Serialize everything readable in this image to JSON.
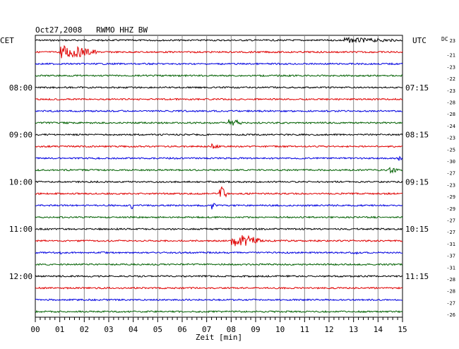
{
  "chart_data": {
    "type": "line",
    "title": "Oct27,2008   RWMO HHZ BW",
    "xlabel": "Zeit [min]",
    "left_axis_title": "CET",
    "right_axis_title": "UTC",
    "dc_label": "DC",
    "xlim": [
      0,
      15
    ],
    "x_ticks": [
      "00",
      "01",
      "02",
      "03",
      "04",
      "05",
      "06",
      "07",
      "08",
      "09",
      "10",
      "11",
      "12",
      "13",
      "14",
      "15"
    ],
    "trace_colors": [
      "#000000",
      "#e00000",
      "#0000e0",
      "#006000"
    ],
    "traces_per_hour": 4,
    "trace_count": 24,
    "cet_hour_labels": [
      {
        "trace": 4,
        "label": "08:00"
      },
      {
        "trace": 8,
        "label": "09:00"
      },
      {
        "trace": 12,
        "label": "10:00"
      },
      {
        "trace": 16,
        "label": "11:00"
      },
      {
        "trace": 20,
        "label": "12:00"
      }
    ],
    "utc_labels": [
      {
        "trace": 4,
        "label": "07:15"
      },
      {
        "trace": 8,
        "label": "08:15"
      },
      {
        "trace": 12,
        "label": "09:15"
      },
      {
        "trace": 16,
        "label": "10:15"
      },
      {
        "trace": 20,
        "label": "11:15"
      }
    ],
    "dc_offsets": [
      "23",
      "-21",
      "-23",
      "-22",
      "-23",
      "-28",
      "-28",
      "-24",
      "-23",
      "-25",
      "-30",
      "-27",
      "-23",
      "-29",
      "-29",
      "-27",
      "-27",
      "-31",
      "-37",
      "-31",
      "-28",
      "-28",
      "-27",
      "-26"
    ],
    "events": [
      {
        "trace": 0,
        "minute": 12.6,
        "amp": 4,
        "duration": 2.4
      },
      {
        "trace": 1,
        "minute": 1.0,
        "amp": 11,
        "duration": 1.5
      },
      {
        "trace": 7,
        "minute": 7.9,
        "amp": 6,
        "duration": 0.6
      },
      {
        "trace": 9,
        "minute": 7.2,
        "amp": 4,
        "duration": 0.4
      },
      {
        "trace": 10,
        "minute": 14.8,
        "amp": 5,
        "duration": 0.2
      },
      {
        "trace": 11,
        "minute": 14.4,
        "amp": 5,
        "duration": 0.5
      },
      {
        "trace": 13,
        "minute": 7.5,
        "amp": 13,
        "duration": 0.3
      },
      {
        "trace": 14,
        "minute": 3.9,
        "amp": 8,
        "duration": 0.1
      },
      {
        "trace": 14,
        "minute": 7.2,
        "amp": 6,
        "duration": 0.2
      },
      {
        "trace": 17,
        "minute": 8.0,
        "amp": 11,
        "duration": 1.3
      },
      {
        "trace": 18,
        "minute": 1.0,
        "amp": 4,
        "duration": 0.1
      },
      {
        "trace": 18,
        "minute": 13.0,
        "amp": 5,
        "duration": 0.2
      }
    ]
  }
}
